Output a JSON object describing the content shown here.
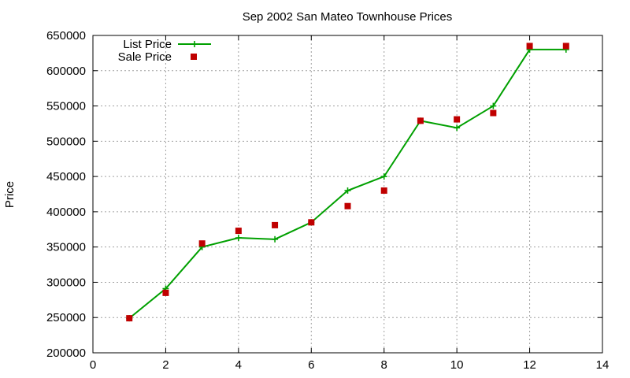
{
  "chart_data": {
    "type": "line",
    "title": "Sep 2002 San Mateo Townhouse Prices",
    "xlabel": "",
    "ylabel": "Price",
    "xlim": [
      0,
      14
    ],
    "ylim": [
      200000,
      650000
    ],
    "xticks": [
      0,
      2,
      4,
      6,
      8,
      10,
      12,
      14
    ],
    "yticks": [
      200000,
      250000,
      300000,
      350000,
      400000,
      450000,
      500000,
      550000,
      600000,
      650000
    ],
    "grid": true,
    "legend": "top-left",
    "series": [
      {
        "name": "List Price",
        "style": "linespoints",
        "marker": "plus",
        "color": "#00a000",
        "x": [
          1,
          2,
          3,
          4,
          5,
          6,
          7,
          8,
          9,
          10,
          11,
          12,
          13
        ],
        "values": [
          249000,
          291000,
          350000,
          363000,
          361000,
          385000,
          430000,
          450000,
          529000,
          519000,
          550000,
          630000,
          630000
        ]
      },
      {
        "name": "Sale Price",
        "style": "points",
        "marker": "square",
        "color": "#c00000",
        "x": [
          1,
          2,
          3,
          4,
          5,
          6,
          7,
          8,
          9,
          10,
          11,
          12,
          13
        ],
        "values": [
          249000,
          285000,
          355000,
          373000,
          381000,
          385000,
          408000,
          430000,
          529000,
          531000,
          540000,
          635000,
          635000
        ]
      }
    ]
  }
}
